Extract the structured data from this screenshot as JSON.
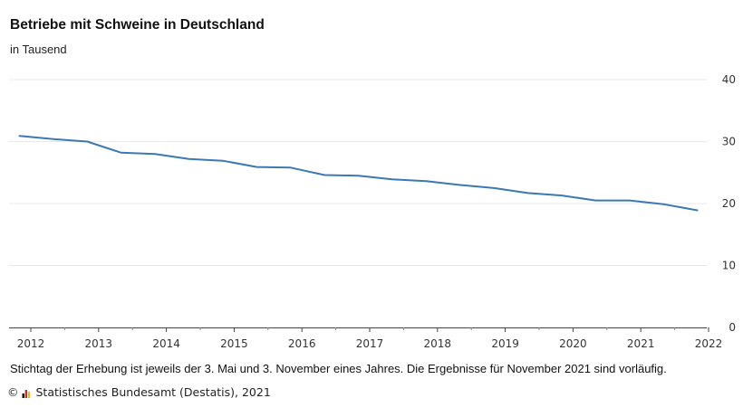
{
  "chart_data": {
    "type": "line",
    "title": "Betriebe mit Schweine in Deutschland",
    "subtitle": "in Tausend",
    "x_ticks": [
      "2012",
      "2013",
      "2014",
      "2015",
      "2016",
      "2017",
      "2018",
      "2019",
      "2020",
      "2021",
      "2022"
    ],
    "y_ticks": [
      0,
      10,
      20,
      30,
      40
    ],
    "ylim": [
      0,
      40
    ],
    "xlim": [
      "2012-01",
      "2022-01"
    ],
    "y_axis_position": "right",
    "grid": true,
    "color": "#3a79b6",
    "series": [
      {
        "x": [
          "2011-11",
          "2012-05",
          "2012-11",
          "2013-05",
          "2013-11",
          "2014-05",
          "2014-11",
          "2015-05",
          "2015-11",
          "2016-05",
          "2016-11",
          "2017-05",
          "2017-11",
          "2018-05",
          "2018-11",
          "2019-05",
          "2019-11",
          "2020-05",
          "2020-11",
          "2021-05",
          "2021-11"
        ],
        "values": [
          30.9,
          30.4,
          30.0,
          28.2,
          28.0,
          27.2,
          26.9,
          25.9,
          25.8,
          24.6,
          24.5,
          23.9,
          23.6,
          23.0,
          22.5,
          21.7,
          21.3,
          20.5,
          20.5,
          19.9,
          18.9
        ]
      }
    ]
  },
  "footnote": "Stichtag der Erhebung ist jeweils der 3. Mai und 3. November eines Jahres. Die Ergebnisse für November 2021 sind vorläufig.",
  "source": {
    "copyright_symbol": "©",
    "logo_icon": "destatis-logo-icon",
    "text": "Statistisches Bundesamt (Destatis), 2021"
  }
}
